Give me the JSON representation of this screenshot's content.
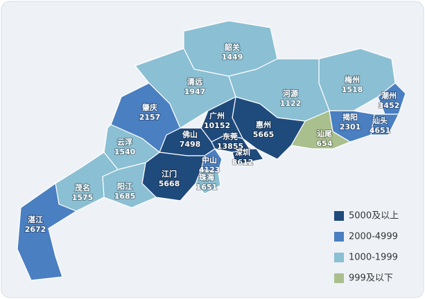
{
  "map": {
    "regions": [
      {
        "name": "韶关",
        "value": 1449,
        "color": "#8bbfd3"
      },
      {
        "name": "清远",
        "value": 1947,
        "color": "#8bbfd3"
      },
      {
        "name": "梅州",
        "value": 1518,
        "color": "#8bbfd3"
      },
      {
        "name": "河源",
        "value": 1122,
        "color": "#8bbfd3"
      },
      {
        "name": "潮州",
        "value": 3452,
        "color": "#4a7fc1"
      },
      {
        "name": "揭阳",
        "value": 2301,
        "color": "#4a7fc1"
      },
      {
        "name": "汕头",
        "value": 4651,
        "color": "#4a7fc1"
      },
      {
        "name": "汕尾",
        "value": 654,
        "color": "#a9c08e"
      },
      {
        "name": "惠州",
        "value": 5665,
        "color": "#1f4a7c"
      },
      {
        "name": "广州",
        "value": 10152,
        "color": "#1f4a7c"
      },
      {
        "name": "东莞",
        "value": 13855,
        "color": "#1f4a7c"
      },
      {
        "name": "深圳",
        "value": 8612,
        "color": "#1f4a7c"
      },
      {
        "name": "佛山",
        "value": 7498,
        "color": "#1f4a7c"
      },
      {
        "name": "中山",
        "value": 4123,
        "color": "#4a7fc1"
      },
      {
        "name": "珠海",
        "value": 1651,
        "color": "#8bbfd3"
      },
      {
        "name": "江门",
        "value": 5668,
        "color": "#1f4a7c"
      },
      {
        "name": "肇庆",
        "value": 2157,
        "color": "#4a7fc1"
      },
      {
        "name": "云浮",
        "value": 1540,
        "color": "#8bbfd3"
      },
      {
        "name": "阳江",
        "value": 1685,
        "color": "#8bbfd3"
      },
      {
        "name": "茂名",
        "value": 1575,
        "color": "#8bbfd3"
      },
      {
        "name": "湛江",
        "value": 2672,
        "color": "#4a7fc1"
      }
    ],
    "legend": [
      {
        "label": "5000及以上",
        "color": "#1f4a7c"
      },
      {
        "label": "2000-4999",
        "color": "#4a7fc1"
      },
      {
        "label": "1000-1999",
        "color": "#8bbfd3"
      },
      {
        "label": "999及以下",
        "color": "#a9c08e"
      }
    ]
  }
}
